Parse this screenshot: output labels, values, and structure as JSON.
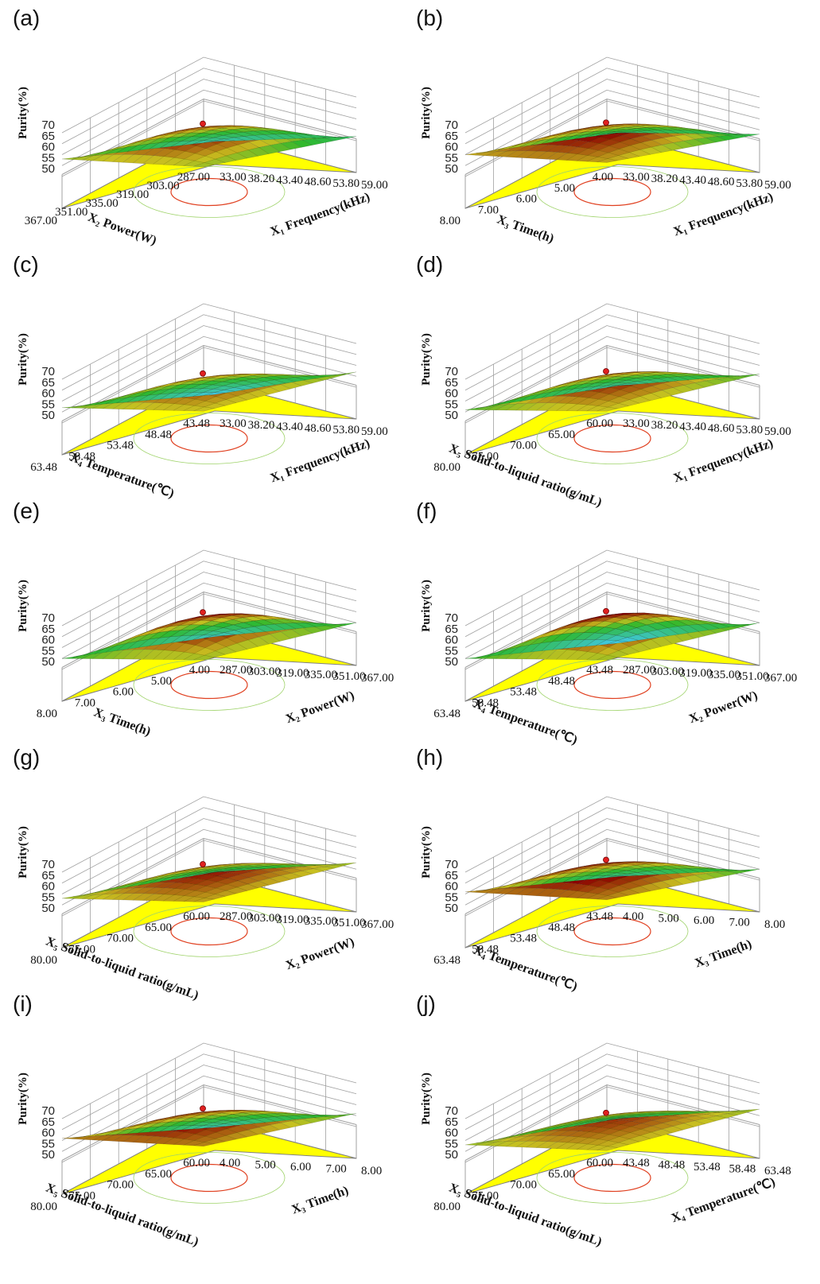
{
  "colors": {
    "floor": "#ffff00",
    "surface_high": "#8b0000",
    "surface_mid": "#2db82d",
    "surface_low": "#40c8e0",
    "contour": "#e04020",
    "grid": "#a0a0a0"
  },
  "chart_data": [
    {
      "panel_label": "(a)",
      "type": "surface3d",
      "zlabel": "Purity(%)",
      "zticks": [
        "70",
        "65",
        "60",
        "55",
        "50"
      ],
      "xlabel": "X₁ Frequency(kHz)",
      "xticks": [
        "33.00",
        "38.20",
        "43.40",
        "48.60",
        "53.80",
        "59.00"
      ],
      "ylabel": "X₂ Power(W)",
      "yticks": [
        "287.00",
        "303.00",
        "319.00",
        "335.00",
        "351.00",
        "367.00"
      ],
      "zlim": [
        50,
        70
      ],
      "surface": {
        "peak": 64.5,
        "corners": [
          58,
          52,
          58,
          46
        ]
      }
    },
    {
      "panel_label": "(b)",
      "type": "surface3d",
      "zlabel": "Purity(%)",
      "zticks": [
        "70",
        "65",
        "60",
        "55",
        "50"
      ],
      "xlabel": "X₁ Frequency(kHz)",
      "xticks": [
        "33.00",
        "38.20",
        "43.40",
        "48.60",
        "53.80",
        "59.00"
      ],
      "ylabel": "X₃ Time(h)",
      "yticks": [
        "4.00",
        "5.00",
        "6.00",
        "7.00",
        "8.00"
      ],
      "zlim": [
        50,
        70
      ],
      "surface": {
        "peak": 65,
        "corners": [
          60,
          53,
          60,
          50
        ]
      }
    },
    {
      "panel_label": "(c)",
      "type": "surface3d",
      "zlabel": "Purity(%)",
      "zticks": [
        "70",
        "65",
        "60",
        "55",
        "50"
      ],
      "xlabel": "X₁ Frequency(kHz)",
      "xticks": [
        "33.00",
        "38.20",
        "43.40",
        "48.60",
        "53.80",
        "59.00"
      ],
      "ylabel": "X₄ Temperature(℃)",
      "yticks": [
        "43.48",
        "48.48",
        "53.48",
        "58.48",
        "63.48"
      ],
      "zlim": [
        50,
        70
      ],
      "surface": {
        "peak": 63,
        "corners": [
          59,
          57,
          57,
          43
        ]
      }
    },
    {
      "panel_label": "(d)",
      "type": "surface3d",
      "zlabel": "Purity(%)",
      "zticks": [
        "70",
        "65",
        "60",
        "55",
        "50"
      ],
      "xlabel": "X₁ Frequency(kHz)",
      "xticks": [
        "33.00",
        "38.20",
        "43.40",
        "48.60",
        "53.80",
        "59.00"
      ],
      "ylabel": "X₅ Solid-to-liquid ratio(g/mL)",
      "yticks": [
        "60.00",
        "65.00",
        "70.00",
        "75.00",
        "80.00"
      ],
      "zlim": [
        50,
        70
      ],
      "surface": {
        "peak": 64,
        "corners": [
          59,
          56,
          56,
          47
        ]
      }
    },
    {
      "panel_label": "(e)",
      "type": "surface3d",
      "zlabel": "Purity(%)",
      "zticks": [
        "70",
        "65",
        "60",
        "55",
        "50"
      ],
      "xlabel": "X₂ Power(W)",
      "xticks": [
        "287.00",
        "303.00",
        "319.00",
        "335.00",
        "351.00",
        "367.00"
      ],
      "ylabel": "X₃ Time(h)",
      "yticks": [
        "4.00",
        "5.00",
        "6.00",
        "7.00",
        "8.00"
      ],
      "zlim": [
        50,
        70
      ],
      "surface": {
        "peak": 66.5,
        "corners": [
          58,
          55,
          55,
          45
        ]
      }
    },
    {
      "panel_label": "(f)",
      "type": "surface3d",
      "zlabel": "Purity(%)",
      "zticks": [
        "70",
        "65",
        "60",
        "55",
        "50"
      ],
      "xlabel": "X₂ Power(W)",
      "xticks": [
        "287.00",
        "303.00",
        "319.00",
        "335.00",
        "351.00",
        "367.00"
      ],
      "ylabel": "X₄ Temperature(℃)",
      "yticks": [
        "43.48",
        "48.48",
        "53.48",
        "58.48",
        "63.48"
      ],
      "zlim": [
        50,
        70
      ],
      "surface": {
        "peak": 67,
        "corners": [
          58,
          55,
          55,
          42
        ]
      }
    },
    {
      "panel_label": "(g)",
      "type": "surface3d",
      "zlabel": "Purity(%)",
      "zticks": [
        "70",
        "65",
        "60",
        "55",
        "50"
      ],
      "xlabel": "X₂ Power(W)",
      "xticks": [
        "287.00",
        "303.00",
        "319.00",
        "335.00",
        "351.00",
        "367.00"
      ],
      "ylabel": "X₅ Solid-to-liquid ratio(g/mL)",
      "yticks": [
        "60.00",
        "65.00",
        "70.00",
        "75.00",
        "80.00"
      ],
      "zlim": [
        50,
        70
      ],
      "surface": {
        "peak": 64,
        "corners": [
          60,
          58,
          58,
          50
        ]
      }
    },
    {
      "panel_label": "(h)",
      "type": "surface3d",
      "zlabel": "Purity(%)",
      "zticks": [
        "70",
        "65",
        "60",
        "55",
        "50"
      ],
      "xlabel": "X₃ Time(h)",
      "xticks": [
        "4.00",
        "5.00",
        "6.00",
        "7.00",
        "8.00"
      ],
      "ylabel": "X₄ Temperature(℃)",
      "yticks": [
        "43.48",
        "48.48",
        "53.48",
        "58.48",
        "63.48"
      ],
      "zlim": [
        50,
        70
      ],
      "surface": {
        "peak": 66,
        "corners": [
          61,
          55,
          61,
          48
        ]
      }
    },
    {
      "panel_label": "(i)",
      "type": "surface3d",
      "zlabel": "Purity(%)",
      "zticks": [
        "70",
        "65",
        "60",
        "55",
        "50"
      ],
      "xlabel": "X₃ Time(h)",
      "xticks": [
        "4.00",
        "5.00",
        "6.00",
        "7.00",
        "8.00"
      ],
      "ylabel": "X₅ Solid-to-liquid ratio(g/mL)",
      "yticks": [
        "60.00",
        "65.00",
        "70.00",
        "75.00",
        "80.00"
      ],
      "zlim": [
        50,
        70
      ],
      "surface": {
        "peak": 65,
        "corners": [
          61,
          56,
          61,
          46
        ]
      }
    },
    {
      "panel_label": "(j)",
      "type": "surface3d",
      "zlabel": "Purity(%)",
      "zticks": [
        "70",
        "65",
        "60",
        "55",
        "50"
      ],
      "xlabel": "X₄ Temperature(℃)",
      "xticks": [
        "43.48",
        "48.48",
        "53.48",
        "58.48",
        "63.48"
      ],
      "ylabel": "X₅ Solid-to-liquid ratio(g/mL)",
      "yticks": [
        "60.00",
        "65.00",
        "70.00",
        "75.00",
        "80.00"
      ],
      "zlim": [
        50,
        70
      ],
      "surface": {
        "peak": 63,
        "corners": [
          59,
          58,
          58,
          50
        ]
      }
    }
  ]
}
